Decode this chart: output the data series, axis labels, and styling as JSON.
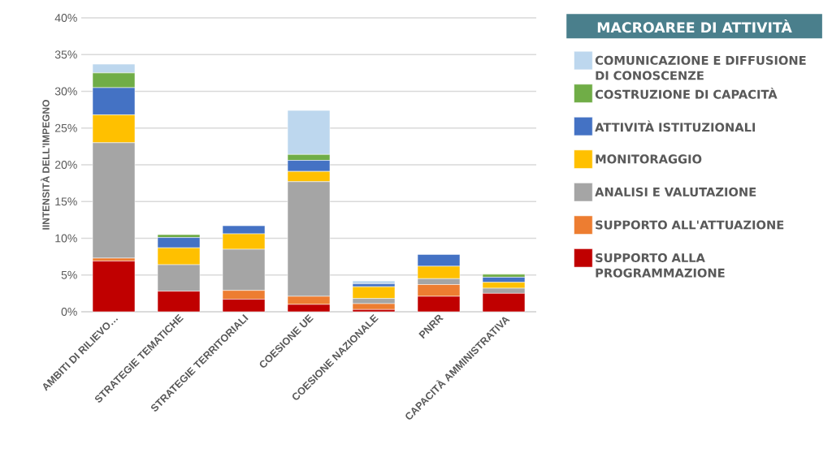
{
  "chart_data": {
    "type": "bar",
    "stacked": true,
    "ylabel": "IINTENSITÀ  DELL'IMPEGNO",
    "legend_title": "MACROAREE DI ATTIVITÀ",
    "categories": [
      "AMBITI DI RILIEVO…",
      "STRATEGIE TEMATICHE",
      "STRATEGIE TERRITORIALI",
      "COESIONE UE",
      "COESIONE NAZIONALE",
      "PNRR",
      "CAPACITÀ AMMINISTRATIVA"
    ],
    "series": [
      {
        "name": "SUPPORTO ALLA PROGRAMMAZIONE",
        "color": "#c00000",
        "values": [
          6.9,
          2.8,
          1.7,
          1.0,
          0.3,
          2.1,
          2.5
        ]
      },
      {
        "name": "SUPPORTO ALL'ATTUAZIONE",
        "color": "#ed7d31",
        "values": [
          0.4,
          null,
          1.2,
          1.1,
          0.8,
          1.6,
          null
        ]
      },
      {
        "name": "ANALISI E VALUTAZIONE",
        "color": "#a5a5a5",
        "values": [
          15.7,
          3.6,
          5.6,
          15.6,
          0.7,
          0.8,
          0.7
        ]
      },
      {
        "name": "MONITORAGGIO",
        "color": "#ffc000",
        "values": [
          3.8,
          2.3,
          2.1,
          1.4,
          1.6,
          1.7,
          0.8
        ]
      },
      {
        "name": "ATTIVITÀ ISTITUZIONALI",
        "color": "#4472c4",
        "values": [
          3.7,
          1.4,
          1.1,
          1.5,
          0.4,
          1.6,
          0.7
        ]
      },
      {
        "name": "COSTRUZIONE DI CAPACITÀ",
        "color": "#70ad47",
        "values": [
          2.0,
          0.4,
          null,
          0.8,
          null,
          null,
          0.4
        ]
      },
      {
        "name": "COMUNICAZIONE E DIFFUSIONE DI CONOSCENZE",
        "color": "#bdd7ee",
        "values": [
          1.2,
          null,
          null,
          6.0,
          0.4,
          null,
          null
        ]
      }
    ],
    "ylim": [
      0,
      40
    ],
    "yticks": [
      {
        "value": 0,
        "label": "0%"
      },
      {
        "value": 5,
        "label": "5%"
      },
      {
        "value": 10,
        "label": "10%"
      },
      {
        "value": 15,
        "label": "15%"
      },
      {
        "value": 20,
        "label": "20%"
      },
      {
        "value": 25,
        "label": "25%"
      },
      {
        "value": 30,
        "label": "30%"
      },
      {
        "value": 35,
        "label": "35%"
      },
      {
        "value": 40,
        "label": "40%"
      }
    ],
    "grid": "y",
    "legend": "right"
  }
}
